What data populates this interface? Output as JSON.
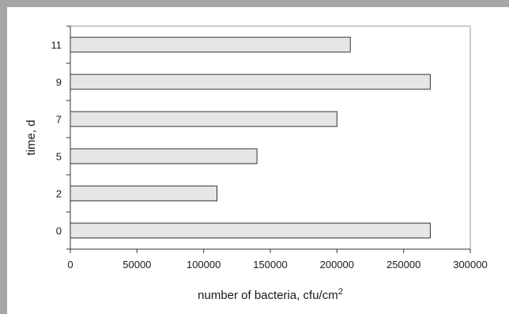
{
  "chart_data": {
    "type": "bar",
    "orientation": "horizontal",
    "title": "",
    "xlabel": "number of bacteria, cfu/cm",
    "xlabel_superscript": "2",
    "ylabel": "time, d",
    "categories": [
      "0",
      "2",
      "5",
      "7",
      "9",
      "11"
    ],
    "values": [
      270000,
      110000,
      140000,
      200000,
      270000,
      210000
    ],
    "xlim": [
      0,
      300000
    ],
    "xticks": [
      "0",
      "50000",
      "100000",
      "150000",
      "200000",
      "250000",
      "300000"
    ],
    "grid": false,
    "legend": "none",
    "bar_fill": "#e6e6e6",
    "bar_stroke": "#333333",
    "frame_color": "#a6a6a6"
  }
}
